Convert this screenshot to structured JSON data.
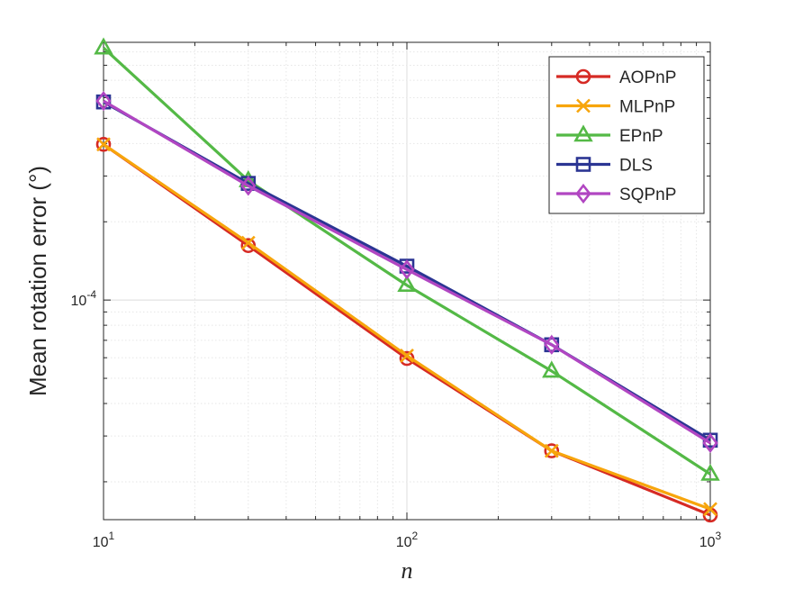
{
  "chart_data": {
    "type": "line",
    "title": "",
    "xlabel": "n",
    "ylabel": "Mean rotation error (°)",
    "xscale": "log",
    "yscale": "log",
    "xlim": [
      10,
      1000
    ],
    "ylim": [
      1.43e-05,
      0.00098
    ],
    "x": [
      10,
      30,
      100,
      300,
      1000
    ],
    "x_ticks": [
      {
        "value": 10,
        "base": "10",
        "exp": "1"
      },
      {
        "value": 100,
        "base": "10",
        "exp": "2"
      },
      {
        "value": 1000,
        "base": "10",
        "exp": "3"
      }
    ],
    "y_ticks": [
      {
        "value": 0.0001,
        "base": "10",
        "exp": "-4"
      }
    ],
    "grid": true,
    "legend_position": "top-right",
    "series": [
      {
        "name": "AOPnP",
        "color": "#d62a24",
        "marker": "circle",
        "values": [
          0.000397,
          0.000162,
          5.96e-05,
          2.63e-05,
          1.49e-05
        ]
      },
      {
        "name": "MLPnP",
        "color": "#f7a50c",
        "marker": "x",
        "values": [
          0.000397,
          0.000166,
          6.11e-05,
          2.63e-05,
          1.57e-05
        ]
      },
      {
        "name": "EPnP",
        "color": "#54b946",
        "marker": "triangle",
        "values": [
          0.000933,
          0.000288,
          0.000114,
          5.33e-05,
          2.14e-05
        ]
      },
      {
        "name": "DLS",
        "color": "#2b3593",
        "marker": "square",
        "values": [
          0.000578,
          0.000281,
          0.000135,
          6.73e-05,
          2.89e-05
        ]
      },
      {
        "name": "SQPnP",
        "color": "#b146c2",
        "marker": "diamond",
        "values": [
          0.000583,
          0.000275,
          0.000131,
          6.73e-05,
          2.82e-05
        ]
      }
    ]
  }
}
